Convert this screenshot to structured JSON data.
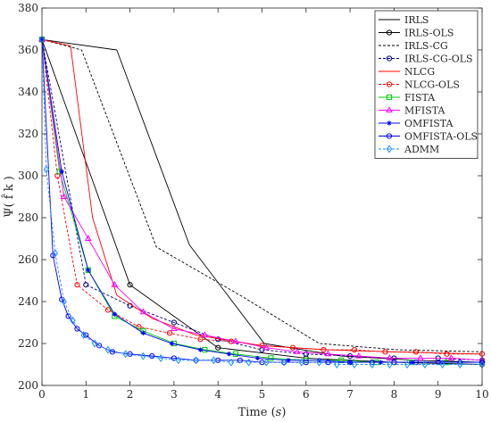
{
  "chart_data": {
    "type": "line",
    "xlabel": "Time (s)",
    "xlabel_parts": [
      "Time (",
      "s",
      ")"
    ],
    "ylabel": "Ψ( f̂ k )",
    "xlim": [
      0,
      10
    ],
    "ylim": [
      200,
      380
    ],
    "xticks": [
      "0",
      "1",
      "2",
      "3",
      "4",
      "5",
      "6",
      "7",
      "8",
      "9",
      "10"
    ],
    "yticks": [
      "200",
      "220",
      "240",
      "260",
      "280",
      "300",
      "320",
      "340",
      "360",
      "380"
    ],
    "grid": false,
    "legend_position": "top-right",
    "series": [
      {
        "name": "IRLS",
        "color": "#000000",
        "dash": "solid",
        "marker": "none",
        "x": [
          0,
          1.7,
          3.35,
          5.05,
          6.8,
          8.5,
          10.0
        ],
        "y": [
          365,
          360,
          267,
          220,
          214,
          212,
          211
        ]
      },
      {
        "name": "IRLS-OLS",
        "color": "#000000",
        "dash": "solid",
        "marker": "circle",
        "x": [
          0,
          2.0,
          4.0,
          6.0,
          8.0,
          10.0
        ],
        "y": [
          365,
          248,
          218,
          213,
          211,
          210
        ]
      },
      {
        "name": "IRLS-CG",
        "color": "#000000",
        "dash": "dashed",
        "marker": "none",
        "x": [
          0,
          0.9,
          2.6,
          4.5,
          6.3,
          8.1,
          10.0
        ],
        "y": [
          365,
          360,
          266,
          243,
          220,
          217,
          216
        ]
      },
      {
        "name": "IRLS-CG-OLS",
        "color": "#000080",
        "dash": "dashed",
        "marker": "circle",
        "x": [
          0,
          1.0,
          2.0,
          3.0,
          4.0,
          5.0,
          6.0,
          7.0,
          8.0,
          9.0,
          10.0
        ],
        "y": [
          365,
          248,
          238,
          230,
          222,
          217,
          215,
          214,
          213,
          213,
          212
        ]
      },
      {
        "name": "NLCG",
        "color": "#ff0000",
        "dash": "solid",
        "marker": "none",
        "x": [
          0,
          0.65,
          1.15,
          1.7,
          2.5,
          3.5,
          5.0,
          6.5,
          8.0,
          10.0
        ],
        "y": [
          365,
          362,
          280,
          243,
          232,
          224,
          219,
          217,
          216,
          215
        ]
      },
      {
        "name": "NLCG-OLS",
        "color": "#ff0000",
        "dash": "dashed",
        "marker": "circle",
        "x": [
          0,
          0.35,
          0.8,
          1.5,
          2.2,
          2.9,
          3.6,
          4.3,
          5.0,
          5.7,
          6.4,
          7.1,
          7.8,
          8.5,
          9.2,
          10.0
        ],
        "y": [
          365,
          300,
          248,
          236,
          228,
          225,
          222,
          221,
          219,
          218,
          217,
          217,
          216,
          216,
          215,
          215
        ]
      },
      {
        "name": "FISTA",
        "color": "#00cc00",
        "dash": "solid",
        "marker": "square",
        "x": [
          0,
          0.4,
          1.05,
          1.65,
          2.3,
          3.0,
          3.7,
          4.4,
          5.2,
          6.0,
          6.8,
          7.6,
          8.4,
          9.2,
          10.0
        ],
        "y": [
          365,
          302,
          255,
          233,
          226,
          220,
          217,
          215,
          213,
          212,
          212,
          211,
          211,
          211,
          211
        ]
      },
      {
        "name": "MFISTA",
        "color": "#ff00ff",
        "dash": "solid",
        "marker": "triangle",
        "x": [
          0,
          0.5,
          1.05,
          1.65,
          2.3,
          3.0,
          3.7,
          4.4,
          5.1,
          5.8,
          6.5,
          7.2,
          7.9,
          8.6,
          9.3,
          10.0
        ],
        "y": [
          365,
          290,
          270,
          248,
          235,
          227,
          224,
          221,
          218,
          216,
          215,
          214,
          213,
          213,
          213,
          212
        ]
      },
      {
        "name": "OMFISTA",
        "color": "#0000ff",
        "dash": "solid",
        "marker": "star",
        "x": [
          0,
          0.45,
          1.05,
          1.65,
          2.3,
          2.95,
          3.6,
          4.25,
          4.9,
          5.6,
          6.3,
          7.0,
          7.7,
          8.4,
          9.1,
          10.0
        ],
        "y": [
          365,
          302,
          255,
          234,
          225,
          220,
          217,
          215,
          213,
          212,
          212,
          211,
          211,
          211,
          211,
          211
        ]
      },
      {
        "name": "OMFISTA-OLS",
        "color": "#0000ff",
        "dash": "solid",
        "marker": "circle",
        "x": [
          0,
          0.25,
          0.45,
          0.6,
          0.8,
          1.0,
          1.3,
          1.6,
          2.0,
          2.5,
          3.0,
          3.5,
          4.0,
          4.5,
          5.0,
          5.5,
          6.0,
          6.5,
          7.0,
          7.5,
          8.0,
          8.5,
          9.0,
          9.5,
          10.0
        ],
        "y": [
          365,
          262,
          241,
          233,
          227,
          224,
          219,
          216,
          215,
          214,
          213,
          212,
          212,
          212,
          211,
          211,
          211,
          211,
          211,
          211,
          211,
          211,
          211,
          211,
          211
        ]
      },
      {
        "name": "ADMM",
        "color": "#1e90ff",
        "dash": "dashed",
        "marker": "diamond",
        "x": [
          0,
          0.1,
          0.3,
          0.5,
          0.7,
          0.95,
          1.2,
          1.5,
          1.9,
          2.3,
          2.7,
          3.1,
          3.5,
          3.9,
          4.3,
          4.7,
          5.1,
          5.5,
          5.9,
          6.3,
          6.7,
          7.1,
          7.5,
          7.9,
          8.3,
          8.7,
          9.1,
          9.5,
          10.0
        ],
        "y": [
          365,
          303,
          263,
          240,
          231,
          224,
          220,
          217,
          215,
          214,
          213,
          212,
          212,
          212,
          211,
          211,
          211,
          211,
          211,
          211,
          210,
          210,
          210,
          210,
          210,
          210,
          210,
          210,
          210
        ]
      }
    ]
  }
}
